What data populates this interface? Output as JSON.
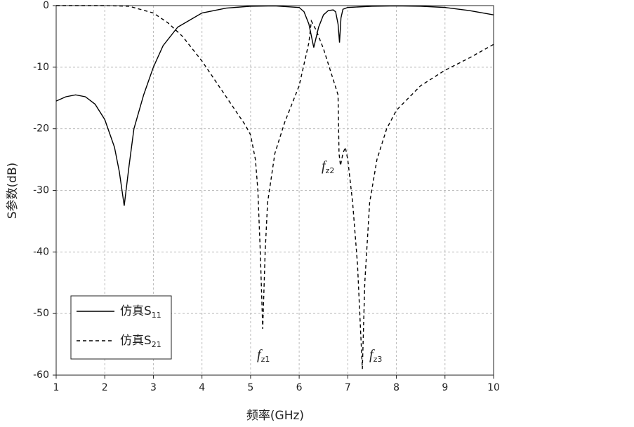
{
  "chart_data": {
    "type": "line",
    "xlabel": "频率(GHz)",
    "ylabel": "S参数(dB)",
    "xlim": [
      1,
      10
    ],
    "ylim": [
      -60,
      0
    ],
    "xticks": [
      1,
      2,
      3,
      4,
      5,
      6,
      7,
      8,
      9,
      10
    ],
    "yticks": [
      -60,
      -50,
      -40,
      -30,
      -20,
      -10,
      0
    ],
    "grid": true,
    "legend": "lower left",
    "series": [
      {
        "name": "仿真S11",
        "color": "#000000",
        "dash": "solid",
        "x": [
          1,
          1.2,
          1.4,
          1.6,
          1.8,
          2.0,
          2.2,
          2.3,
          2.4,
          2.5,
          2.6,
          2.8,
          3.0,
          3.2,
          3.5,
          4.0,
          4.5,
          5.0,
          5.5,
          6.0,
          6.1,
          6.2,
          6.3,
          6.4,
          6.5,
          6.6,
          6.7,
          6.75,
          6.8,
          6.83,
          6.86,
          6.9,
          7.0,
          7.5,
          8.0,
          8.5,
          9.0,
          9.5,
          10
        ],
        "values": [
          -15.5,
          -14.8,
          -14.5,
          -14.8,
          -16,
          -18.5,
          -23,
          -27,
          -32.5,
          -26,
          -20,
          -14.5,
          -10,
          -6.5,
          -3.5,
          -1.2,
          -0.4,
          -0.1,
          -0.05,
          -0.3,
          -1,
          -3,
          -6.8,
          -3.5,
          -1.5,
          -0.8,
          -0.7,
          -1,
          -3,
          -6,
          -2,
          -0.6,
          -0.3,
          -0.1,
          -0.05,
          -0.1,
          -0.3,
          -0.8,
          -1.5
        ]
      },
      {
        "name": "仿真S21",
        "color": "#000000",
        "dash": "dashed",
        "x": [
          1,
          2,
          2.5,
          3.0,
          3.3,
          3.6,
          4.0,
          4.3,
          4.6,
          4.9,
          5.0,
          5.1,
          5.15,
          5.2,
          5.25,
          5.3,
          5.35,
          5.5,
          5.7,
          6.0,
          6.2,
          6.25,
          6.35,
          6.5,
          6.7,
          6.8,
          6.82,
          6.85,
          6.9,
          6.95,
          7.0,
          7.1,
          7.2,
          7.3,
          7.35,
          7.45,
          7.6,
          7.8,
          8.0,
          8.5,
          9.0,
          9.5,
          10
        ],
        "values": [
          0,
          0,
          -0.1,
          -1.2,
          -2.8,
          -5,
          -9,
          -12.5,
          -16,
          -19.5,
          -21,
          -25,
          -30,
          -40,
          -52.5,
          -40,
          -32,
          -24,
          -19,
          -13,
          -6,
          -2.5,
          -4,
          -7,
          -12,
          -14.5,
          -24,
          -26,
          -24,
          -23,
          -25,
          -32,
          -42,
          -59,
          -45,
          -32,
          -25,
          -20,
          -17,
          -13,
          -10.5,
          -8.5,
          -6.3
        ]
      }
    ],
    "annotations": [
      "fz1",
      "fz2",
      "fz3"
    ]
  }
}
